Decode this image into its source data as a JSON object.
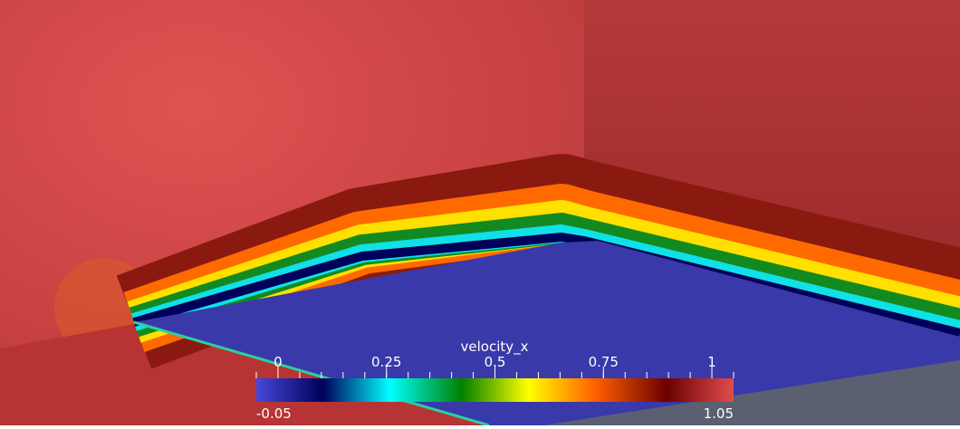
{
  "colorbar": {
    "title": "velocity_x",
    "range": [
      -0.05,
      1.05
    ],
    "ticks": [
      0,
      0.25,
      0.5,
      0.75,
      1
    ]
  }
}
